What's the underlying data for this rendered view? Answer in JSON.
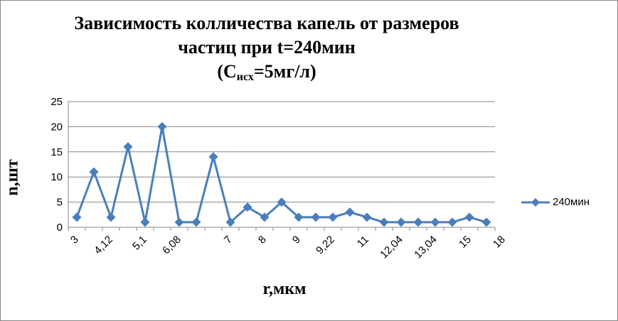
{
  "chart_data": {
    "type": "line",
    "title": {
      "line1": "Зависимость колличества капель от размеров",
      "line2": "частиц при t=240мин",
      "line3_prefix": "(С",
      "line3_sub": "исх",
      "line3_suffix": "=5мг/л)"
    },
    "xlabel": "r,мкм",
    "ylabel": "n,шт",
    "ylim": [
      0,
      25
    ],
    "yticks": [
      "0",
      "5",
      "10",
      "15",
      "20",
      "25"
    ],
    "x_tick_labels": [
      "3",
      "",
      "4,12",
      "",
      "5,1",
      "",
      "6,08",
      "",
      "",
      "7",
      "",
      "8",
      "",
      "9",
      "",
      "9,22",
      "",
      "11",
      "",
      "12,04",
      "",
      "13,04",
      "",
      "15",
      "",
      "18"
    ],
    "grid": "horizontal",
    "legend_position": "right",
    "series": [
      {
        "name": "240мин",
        "color": "#4a7ebb",
        "values": [
          2,
          11,
          2,
          16,
          1,
          20,
          1,
          1,
          14,
          1,
          4,
          2,
          5,
          2,
          2,
          2,
          3,
          2,
          1,
          1,
          1,
          1,
          1,
          2,
          1
        ]
      }
    ]
  }
}
